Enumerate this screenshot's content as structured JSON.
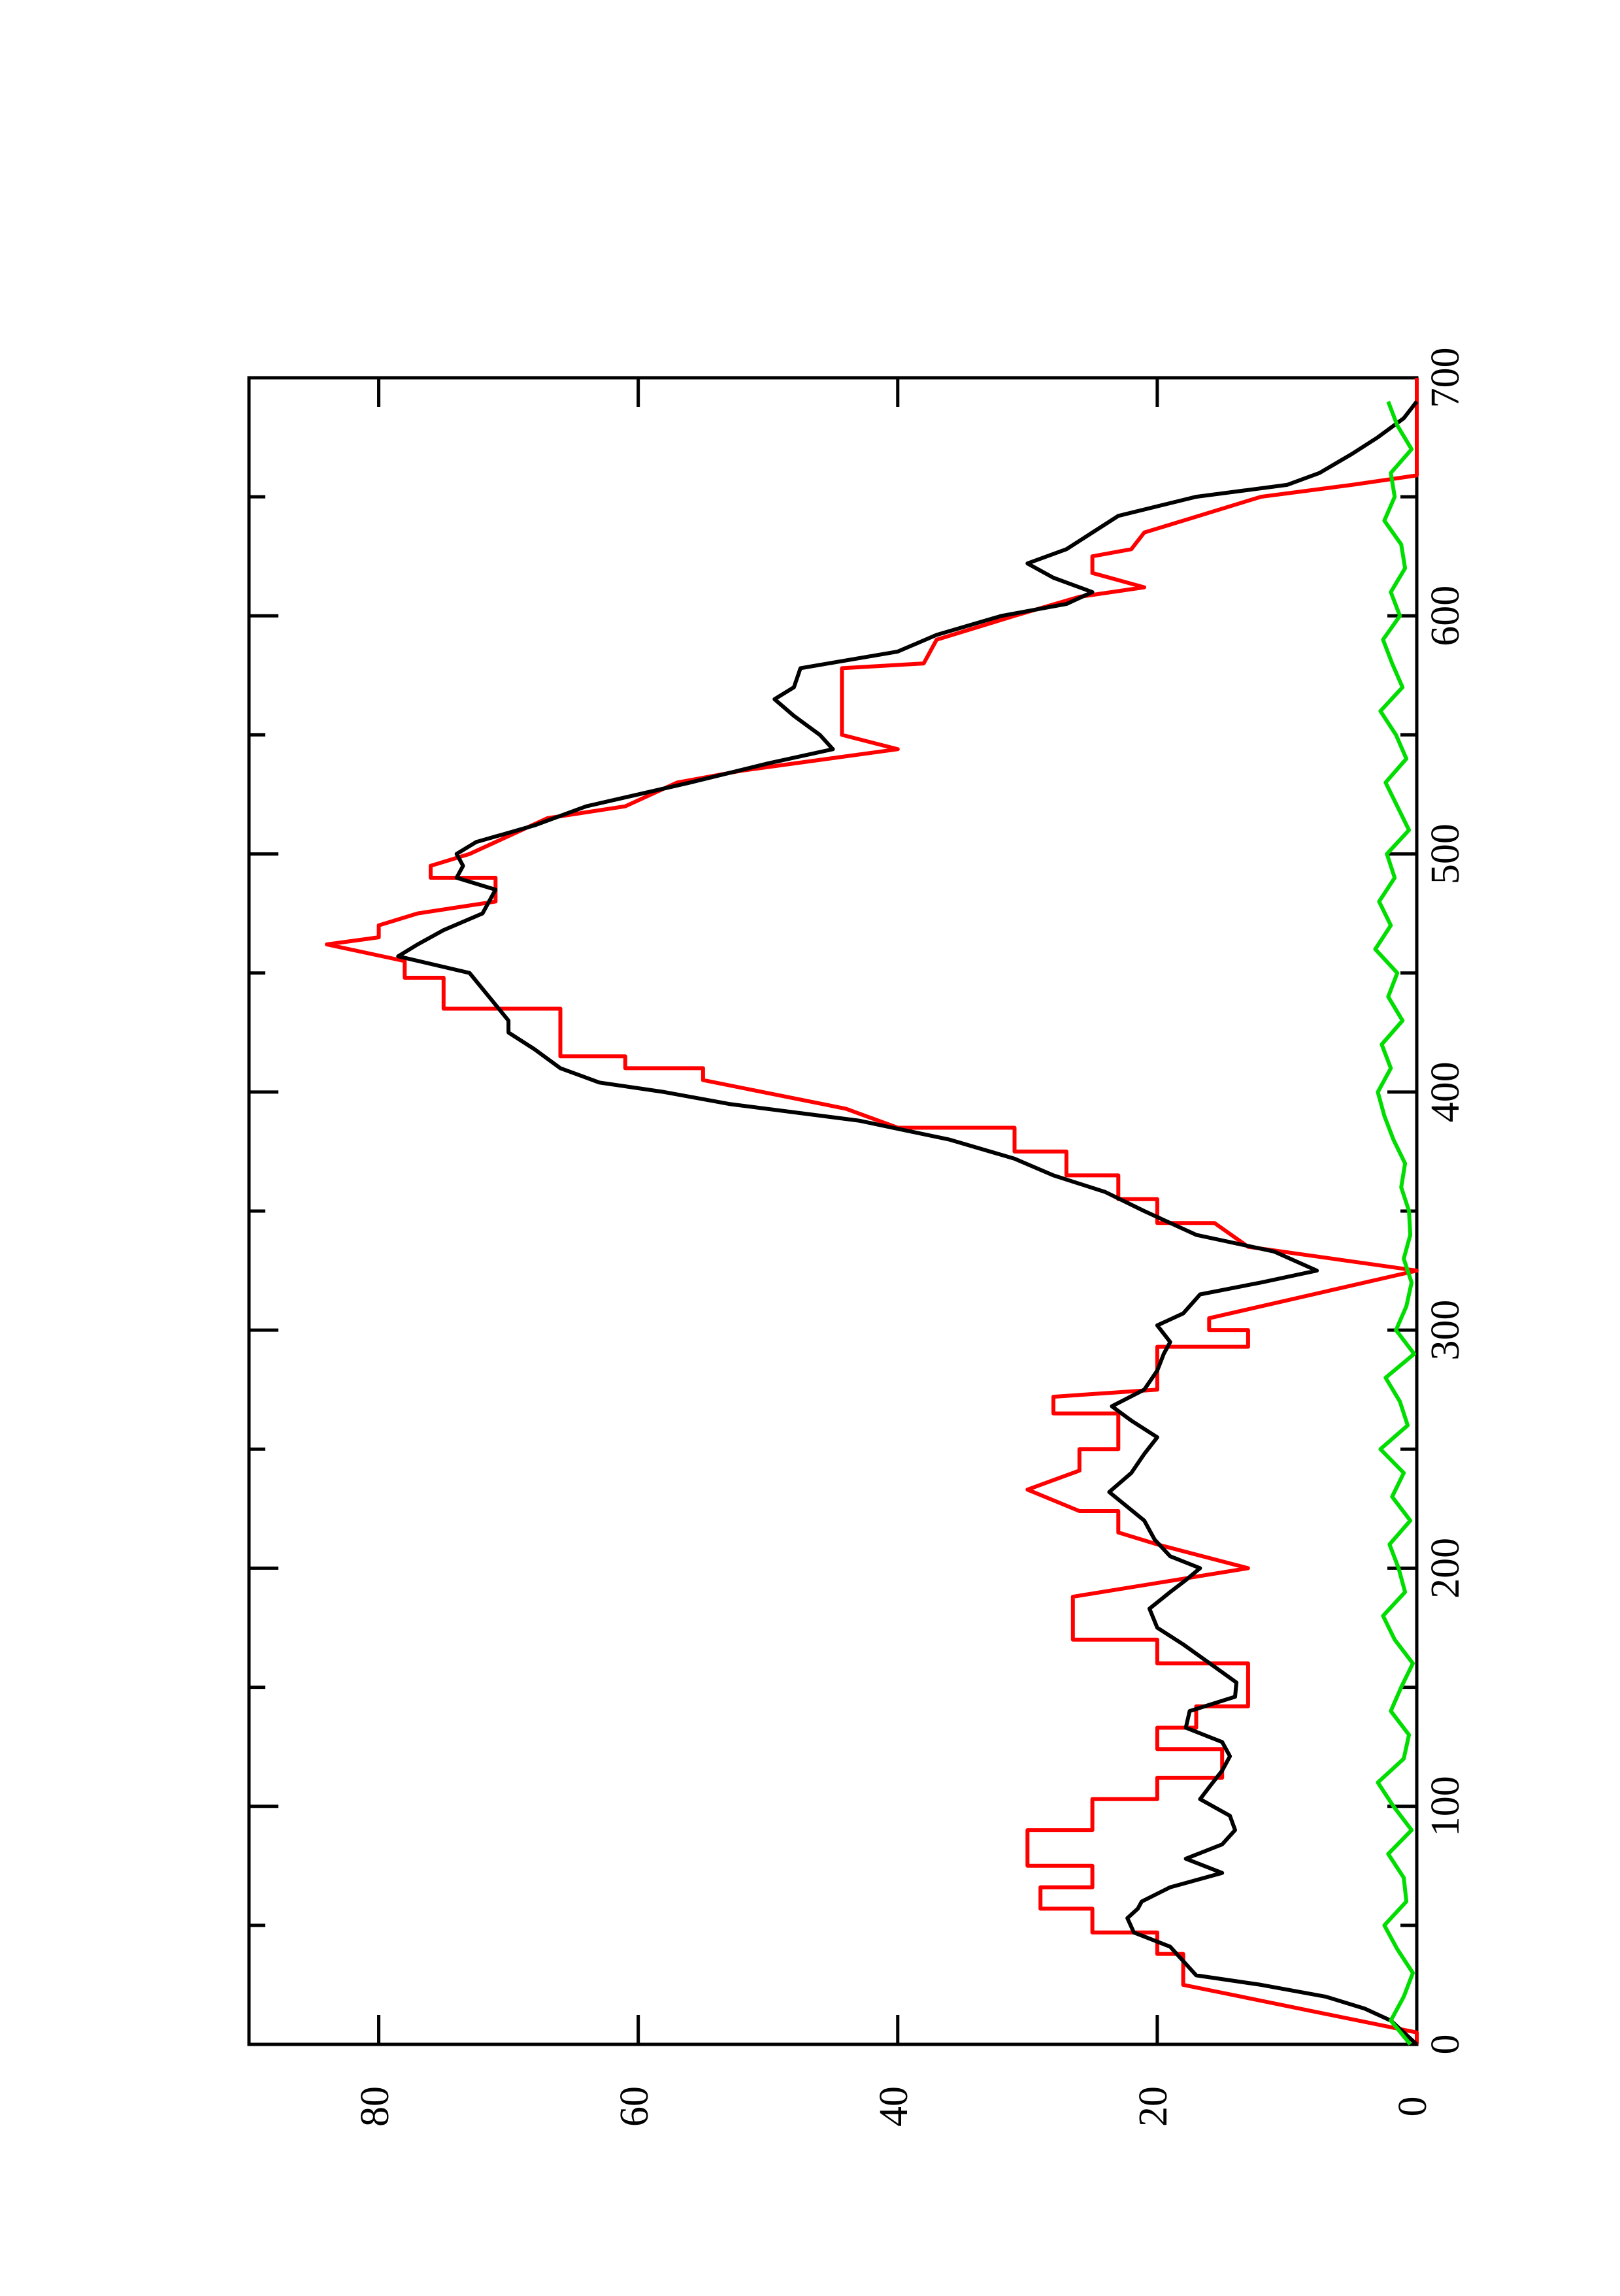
{
  "chart_data": {
    "type": "line",
    "orientation": "rotated",
    "xlim": [
      0,
      700
    ],
    "xticks": [
      0,
      100,
      200,
      300,
      400,
      500,
      600,
      700
    ],
    "xminorticks": [
      50,
      150,
      250,
      350,
      450,
      550,
      650
    ],
    "ylim": [
      0,
      90
    ],
    "yticks": [
      0,
      20,
      40,
      60,
      80
    ],
    "series": [
      {
        "color": "#ff0000",
        "x": [
          0,
          5,
          25,
          38,
          38,
          47,
          47,
          57,
          57,
          66,
          66,
          75,
          75,
          90,
          90,
          103,
          103,
          112,
          112,
          124,
          124,
          133,
          133,
          142,
          142,
          160,
          160,
          170,
          170,
          188,
          200,
          210,
          215,
          224,
          224,
          233,
          241,
          250,
          250,
          265,
          265,
          272,
          275,
          293,
          293,
          300,
          300,
          305,
          325,
          335,
          345,
          345,
          355,
          355,
          365,
          365,
          375,
          375,
          385,
          385,
          393,
          405,
          410,
          410,
          415,
          415,
          435,
          435,
          448,
          448,
          455,
          462,
          465,
          470,
          475,
          480,
          490,
          490,
          495,
          500,
          505,
          515,
          520,
          530,
          535,
          544,
          550,
          578,
          580,
          590,
          600,
          608,
          612,
          618,
          625,
          628,
          635,
          640,
          650,
          655,
          659,
          700
        ],
        "values": [
          0,
          0,
          18,
          18,
          20,
          20,
          25,
          25,
          29,
          29,
          25,
          25,
          30,
          30,
          25,
          25,
          20,
          20,
          15,
          15,
          20,
          20,
          17,
          17,
          13,
          13,
          20,
          20,
          26.5,
          26.5,
          13,
          20,
          23,
          23,
          26,
          30,
          26,
          26,
          23,
          23,
          28,
          28,
          20,
          20,
          13,
          13,
          16,
          16,
          0,
          13,
          15.6,
          20,
          20,
          23,
          23,
          27,
          27,
          31,
          31,
          40,
          44,
          55,
          55,
          61,
          61,
          66,
          66,
          75,
          75,
          78,
          78,
          84,
          80,
          80,
          77,
          71,
          71,
          76,
          76,
          73,
          71,
          67,
          61,
          57,
          52,
          40,
          44.3,
          44.3,
          38,
          37,
          31,
          26,
          21,
          25,
          25,
          22,
          21,
          18,
          12,
          5,
          0,
          0
        ]
      },
      {
        "color": "#000000",
        "x": [
          0,
          5,
          10,
          15,
          20,
          25,
          29,
          35,
          41,
          47,
          53,
          57,
          60,
          66,
          72,
          78,
          84,
          90,
          96,
          103,
          108,
          115,
          121,
          127,
          133,
          140,
          146,
          152,
          161,
          168,
          175,
          183,
          190,
          195,
          200,
          205,
          212,
          220,
          232,
          240,
          248,
          255,
          262,
          268,
          275,
          283,
          290,
          295,
          302,
          307,
          315,
          320,
          325,
          333,
          340,
          350,
          358,
          365,
          372,
          380,
          388,
          395,
          400,
          404,
          410,
          418,
          425,
          430,
          440,
          450,
          457,
          462,
          468,
          475,
          485,
          490,
          495,
          500,
          505,
          512,
          520,
          530,
          538,
          544,
          550,
          558,
          565,
          570,
          578,
          585,
          592,
          600,
          605,
          610,
          616,
          622,
          628,
          635,
          642,
          650,
          655,
          660,
          668,
          675,
          683,
          690
        ],
        "values": [
          0,
          1,
          2,
          4,
          7,
          12,
          17,
          18,
          19,
          21.8,
          22.3,
          21.5,
          21.2,
          19,
          15,
          17.8,
          15,
          14,
          14.4,
          16.7,
          16,
          15,
          14.4,
          15,
          17.8,
          17.5,
          14,
          13.9,
          16.2,
          18,
          20,
          20.6,
          19,
          17.8,
          16.7,
          19,
          20.2,
          21,
          23.7,
          22,
          21,
          20,
          22,
          23.5,
          21,
          20,
          19.5,
          19,
          20,
          18,
          16.7,
          12,
          7.7,
          11,
          17,
          21,
          24,
          28,
          31,
          36,
          43,
          53,
          58,
          63,
          66,
          68,
          70,
          70,
          71.5,
          73,
          78.5,
          77,
          75,
          72,
          71,
          74,
          73.5,
          74,
          72.5,
          68,
          64,
          56,
          50,
          45,
          46,
          48,
          49.5,
          48,
          47.5,
          40,
          37,
          32,
          27,
          25,
          28,
          30,
          27,
          25,
          23,
          17,
          10,
          7.5,
          5,
          3,
          1,
          0
        ]
      },
      {
        "color": "#00dd00",
        "x": [
          0,
          10,
          20,
          30,
          40,
          50,
          60,
          70,
          80,
          90,
          100,
          110,
          120,
          130,
          140,
          150,
          160,
          170,
          180,
          190,
          200,
          210,
          220,
          230,
          240,
          250,
          260,
          270,
          280,
          290,
          300,
          310,
          320,
          330,
          340,
          350,
          360,
          370,
          380,
          390,
          400,
          410,
          420,
          430,
          440,
          450,
          460,
          470,
          480,
          490,
          500,
          510,
          520,
          530,
          540,
          550,
          560,
          570,
          580,
          590,
          600,
          610,
          620,
          630,
          640,
          650,
          660,
          670,
          680,
          690
        ],
        "values": [
          0.5,
          2,
          1,
          0.3,
          1.5,
          2.5,
          0.8,
          1,
          2.2,
          0.4,
          1.8,
          3,
          1,
          0.6,
          2,
          1.2,
          0.3,
          1.7,
          2.6,
          0.9,
          1.4,
          2.1,
          0.5,
          1.9,
          1,
          2.8,
          0.7,
          1.3,
          2.4,
          0.2,
          1.6,
          0.8,
          0.4,
          1,
          0.5,
          0.6,
          1.2,
          0.9,
          1.8,
          2.5,
          3,
          2,
          2.7,
          1.1,
          2.2,
          1.5,
          3.2,
          2,
          2.9,
          1.7,
          2.3,
          0.6,
          1.5,
          2.4,
          0.8,
          1.6,
          2.8,
          1.1,
          1.9,
          2.6,
          1.3,
          2,
          0.9,
          1.2,
          2.5,
          1.7,
          2,
          0.4,
          1.5,
          2.2
        ]
      }
    ]
  }
}
